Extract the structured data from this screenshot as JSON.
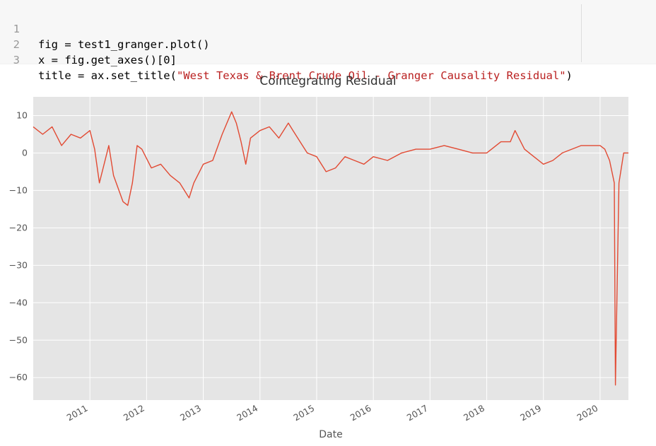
{
  "code_cell": {
    "lines": [
      {
        "num": "1",
        "text": "fig = test1_granger.plot()"
      },
      {
        "num": "2",
        "text": "x = fig.get_axes()[0]"
      },
      {
        "num": "3",
        "text_before": "title = ax.set_title(",
        "string": "\"West Texas & Brent Crude Oil - Granger Causality Residual\"",
        "text_after": ")"
      }
    ]
  },
  "chart_data": {
    "type": "line",
    "title": "Cointegrating Residual",
    "xlabel": "Date",
    "ylabel": "",
    "x_ticks": [
      "2011",
      "2012",
      "2013",
      "2014",
      "2015",
      "2016",
      "2017",
      "2018",
      "2019",
      "2020"
    ],
    "y_ticks": [
      10,
      0,
      -10,
      -20,
      -30,
      -40,
      -50,
      -60
    ],
    "xlim": [
      "2010-01",
      "2020-07"
    ],
    "ylim": [
      -66,
      15
    ],
    "grid": true,
    "background": "#e5e5e5",
    "line_color": "#e24a33",
    "series": [
      {
        "x": [
          "2010-01",
          "2010-03",
          "2010-05",
          "2010-07",
          "2010-09",
          "2010-11",
          "2011-01",
          "2011-02",
          "2011-03",
          "2011-05",
          "2011-06",
          "2011-08",
          "2011-09",
          "2011-10",
          "2011-11",
          "2011-12",
          "2012-02",
          "2012-04",
          "2012-06",
          "2012-08",
          "2012-10",
          "2012-11",
          "2013-01",
          "2013-03",
          "2013-05",
          "2013-07",
          "2013-08",
          "2013-09",
          "2013-10",
          "2013-11",
          "2014-01",
          "2014-03",
          "2014-05",
          "2014-07",
          "2014-08",
          "2014-10",
          "2014-11",
          "2015-01",
          "2015-03",
          "2015-05",
          "2015-07",
          "2015-09",
          "2015-11",
          "2016-01",
          "2016-04",
          "2016-07",
          "2016-10",
          "2017-01",
          "2017-04",
          "2017-07",
          "2017-10",
          "2018-01",
          "2018-04",
          "2018-06",
          "2018-07",
          "2018-09",
          "2018-11",
          "2019-01",
          "2019-03",
          "2019-05",
          "2019-07",
          "2019-09",
          "2019-11",
          "2020-01",
          "2020-02",
          "2020-03",
          "2020-04",
          "2020-04",
          "2020-05",
          "2020-06",
          "2020-07"
        ],
        "y": [
          7,
          5,
          7,
          2,
          5,
          4,
          6,
          1,
          -8,
          2,
          -6,
          -13,
          -14,
          -8,
          2,
          1,
          -4,
          -3,
          -6,
          -8,
          -12,
          -8,
          -3,
          -2,
          5,
          11,
          8,
          3,
          -3,
          4,
          6,
          7,
          4,
          8,
          6,
          2,
          0,
          -1,
          -5,
          -4,
          -1,
          -2,
          -3,
          -1,
          -2,
          0,
          1,
          1,
          2,
          1,
          0,
          0,
          3,
          3,
          6,
          1,
          -1,
          -3,
          -2,
          0,
          1,
          2,
          2,
          2,
          1,
          -2,
          -8,
          -62,
          -8,
          0,
          0
        ]
      }
    ]
  }
}
